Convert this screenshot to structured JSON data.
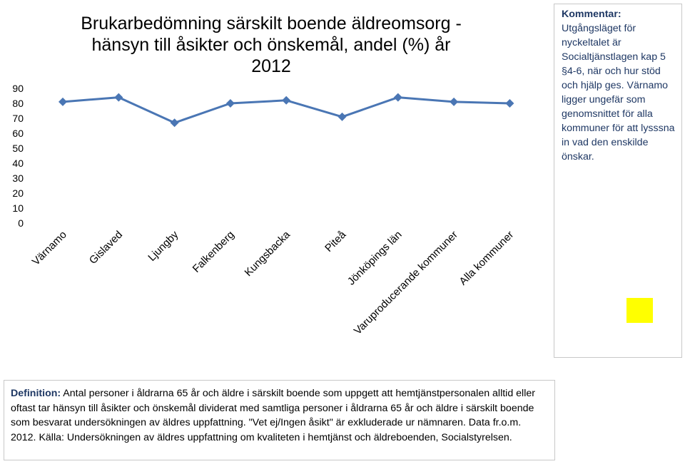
{
  "chart_data": {
    "type": "line",
    "title_lines": [
      "Brukarbedömning särskilt boende äldreomsorg -",
      "hänsyn till åsikter och önskemål, andel (%) år",
      "2012"
    ],
    "categories": [
      "Värnamo",
      "Gislaved",
      "Ljungby",
      "Falkenberg",
      "Kungsbacka",
      "Piteå",
      "Jönköpings län",
      "Varuproducerande kommuner",
      "Alla kommuner"
    ],
    "values": [
      81,
      84,
      67,
      80,
      82,
      71,
      84,
      81,
      80
    ],
    "yticks": [
      "0",
      "10",
      "20",
      "30",
      "40",
      "50",
      "60",
      "70",
      "80",
      "90"
    ],
    "ylim": [
      0,
      90
    ],
    "line_color": "#4a76b4",
    "grid": false,
    "legend": "none"
  },
  "comment": {
    "label": "Kommentar:",
    "text": " Utgångsläget för nyckeltalet är Socialtjänstlagen kap 5 §4-6, när och hur stöd och hjälp ges. Värnamo ligger ungefär som genomsnittet för  alla kommuner för att lysssna in vad den enskilde önskar.",
    "text_color": "#1f3864",
    "marker_color": "#ffff00"
  },
  "definition": {
    "label": "Definition:",
    "text": " Antal personer i åldrarna 65 år och äldre i särskilt boende som uppgett att hemtjänstpersonalen alltid eller oftast tar hänsyn till åsikter och önskemål dividerat med samtliga personer i åldrarna 65 år och äldre i särskilt boende som besvarat undersökningen av äldres uppfattning. \"Vet ej/Ingen åsikt\" är exkluderade ur nämnaren. Data fr.o.m. 2012. Källa: Undersökningen av äldres uppfattning om kvaliteten i hemtjänst och äldreboenden, Socialstyrelsen."
  }
}
